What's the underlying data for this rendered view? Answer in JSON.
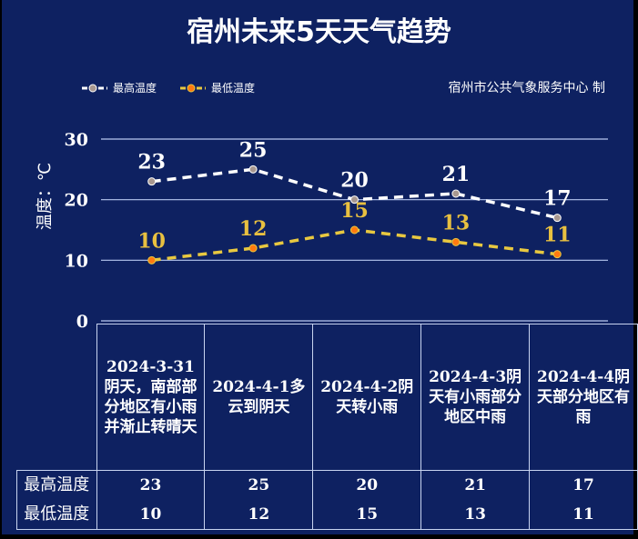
{
  "title": "宿州未来5天天气趋势",
  "credit": "宿州市公共气象服务中心 制",
  "chart_data": {
    "type": "line",
    "title": "宿州未来5天天气趋势",
    "ylabel": "温度：℃",
    "ylim": [
      0,
      30
    ],
    "yticks": [
      "0",
      "10",
      "20",
      "30"
    ],
    "grid": true,
    "legend_position": "top-left",
    "categories": [
      "2024-3-31阴天，南部部分地区有小雨并渐止转晴天",
      "2024-4-1多云到阴天",
      "2024-4-2阴天转小雨",
      "2024-4-3阴天有小雨部分地区中雨",
      "2024-4-4阴天部分地区有雨"
    ],
    "series": [
      {
        "name": "最高温度",
        "values": [
          23,
          25,
          20,
          21,
          17
        ],
        "color": "#ffffff",
        "label_color": "#ffffff",
        "marker_color": "#a89890"
      },
      {
        "name": "最低温度",
        "values": [
          10,
          12,
          15,
          13,
          11
        ],
        "color": "#e8c840",
        "label_color": "#e8c040",
        "marker_color": "#ff7a10"
      }
    ]
  }
}
